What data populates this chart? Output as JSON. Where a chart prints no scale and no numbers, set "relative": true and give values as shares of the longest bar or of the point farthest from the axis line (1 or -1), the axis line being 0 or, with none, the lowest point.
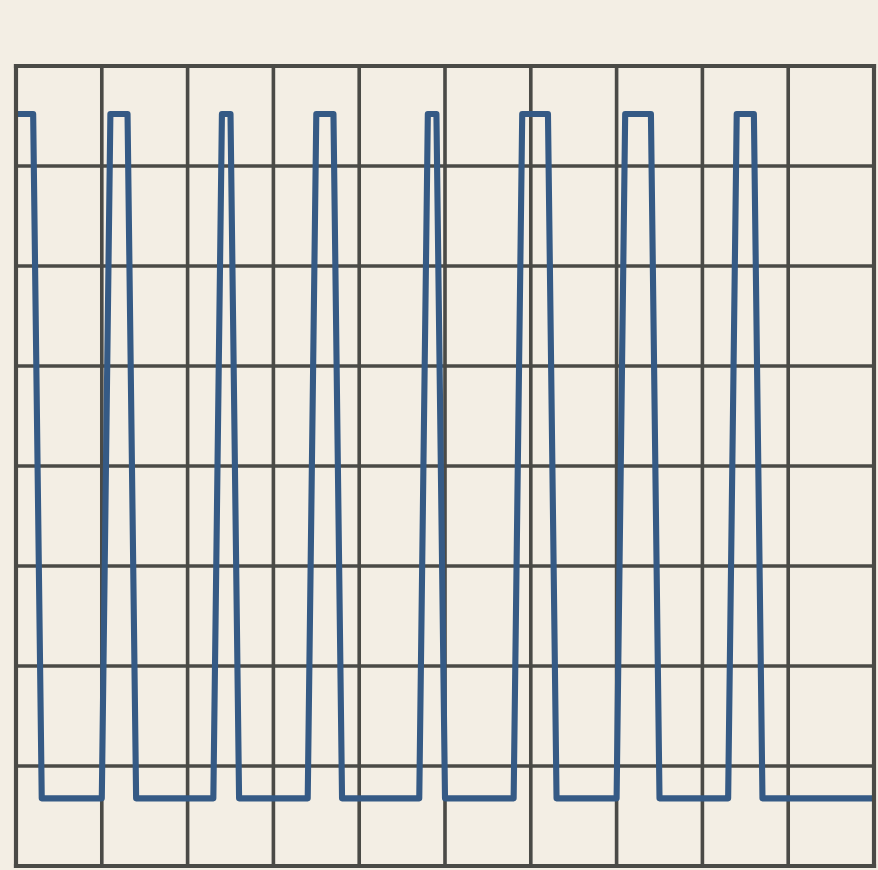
{
  "chart_data": {
    "type": "line",
    "relative": true,
    "grid": true,
    "legend": false,
    "categories": [
      null,
      null,
      null,
      null,
      null,
      null,
      null,
      null,
      null,
      null,
      null,
      null,
      null,
      null,
      null,
      null,
      null,
      null,
      null,
      null,
      null,
      null,
      null,
      null,
      null,
      null,
      null,
      null,
      null,
      null,
      null,
      null,
      null,
      null,
      null,
      null,
      null,
      null,
      null,
      null,
      null,
      null,
      null,
      null,
      null,
      null,
      null,
      null,
      null,
      null,
      null,
      null,
      null,
      null,
      null,
      null,
      null,
      null,
      null,
      null,
      null,
      null,
      null,
      null,
      null,
      null,
      null,
      null,
      null,
      null,
      null,
      null,
      null,
      null,
      null,
      null,
      null,
      null,
      null,
      null,
      null,
      null,
      null,
      null,
      null,
      null,
      null,
      null,
      null,
      null,
      null,
      null,
      null,
      null,
      null,
      null,
      null,
      null,
      null,
      null,
      null
    ],
    "series": [
      {
        "color": "#355a85",
        "values": [
          1,
          1,
          1,
          0.09,
          0.09,
          0.09,
          0.09,
          0.09,
          0.09,
          0.09,
          0.09,
          1,
          1,
          1,
          0.09,
          0.09,
          0.09,
          0.09,
          0.09,
          0.09,
          0.09,
          0.09,
          0.09,
          0.09,
          1,
          1,
          0.09,
          0.09,
          0.09,
          0.09,
          0.09,
          0.09,
          0.09,
          0.09,
          0.09,
          1,
          1,
          1,
          0.09,
          0.09,
          0.09,
          0.09,
          0.09,
          0.09,
          0.09,
          0.09,
          0.09,
          0.09,
          1,
          1,
          0.09,
          0.09,
          0.09,
          0.09,
          0.09,
          0.09,
          0.09,
          0.09,
          0.09,
          1,
          1,
          1,
          1,
          0.09,
          0.09,
          0.09,
          0.09,
          0.09,
          0.09,
          0.09,
          0.09,
          1,
          1,
          1,
          1,
          0.09,
          0.09,
          0.09,
          0.09,
          0.09,
          0.09,
          0.09,
          0.09,
          0.09,
          1,
          1,
          1,
          0.09,
          0.09,
          0.09,
          0.09,
          0.09,
          0.09,
          0.09,
          0.09,
          0.09,
          0.09,
          0.09,
          0.09,
          0.09,
          0.09
        ]
      }
    ]
  }
}
